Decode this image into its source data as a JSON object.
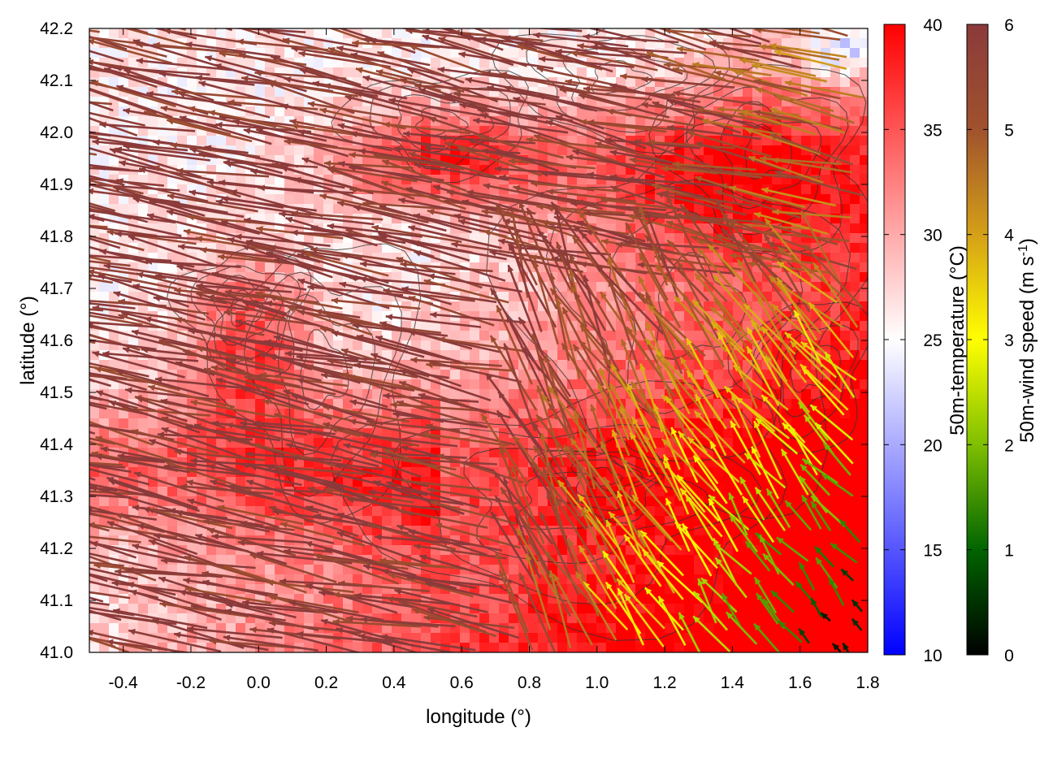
{
  "chart_data": {
    "type": "heatmap",
    "title": "",
    "xlabel": "longitude (°)",
    "ylabel": "latitude (°)",
    "xlim": [
      -0.5,
      1.8
    ],
    "ylim": [
      41.0,
      42.2
    ],
    "x_ticks": [
      "-0.4",
      "-0.2",
      "0.0",
      "0.2",
      "0.4",
      "0.6",
      "0.8",
      "1.0",
      "1.2",
      "1.4",
      "1.6",
      "1.8"
    ],
    "y_ticks": [
      "41.0",
      "41.1",
      "41.2",
      "41.3",
      "41.4",
      "41.5",
      "41.6",
      "41.7",
      "41.8",
      "41.9",
      "42.0",
      "42.1",
      "42.2"
    ],
    "overlays": [
      "wind vectors",
      "topography contours"
    ],
    "colorbars": [
      {
        "name": "temperature",
        "label": "50m-temperature (°C)",
        "range": [
          10,
          40
        ],
        "ticks": [
          "10",
          "15",
          "20",
          "25",
          "30",
          "35",
          "40"
        ],
        "colors": [
          "#0000ff",
          "#ffffff",
          "#ff0000"
        ]
      },
      {
        "name": "wind speed",
        "label": "50m-wind speed (m s",
        "label_sup": "-1",
        "label_end": ")",
        "range": [
          0,
          6
        ],
        "ticks": [
          "0",
          "1",
          "2",
          "3",
          "4",
          "5",
          "6"
        ],
        "colors": [
          "#000000",
          "#006400",
          "#7fbf00",
          "#ffff00",
          "#d4a017",
          "#a0522d",
          "#8b3a3a"
        ]
      }
    ],
    "regions": {
      "temperature_c": [
        {
          "area": "south-east (lon 0.7-1.8, lat 41.0-41.5)",
          "value": 38
        },
        {
          "area": "north-west (lon -0.5-0.4, lat 41.6-42.2)",
          "value": 26
        },
        {
          "area": "north-east corner (lon 1.6-1.8, lat 42.0-42.2)",
          "value": 28
        }
      ],
      "wind_speed_ms": [
        {
          "area": "west",
          "value": 6
        },
        {
          "area": "south-east",
          "value": 1.5
        },
        {
          "area": "north-east",
          "value": 4
        }
      ]
    }
  }
}
